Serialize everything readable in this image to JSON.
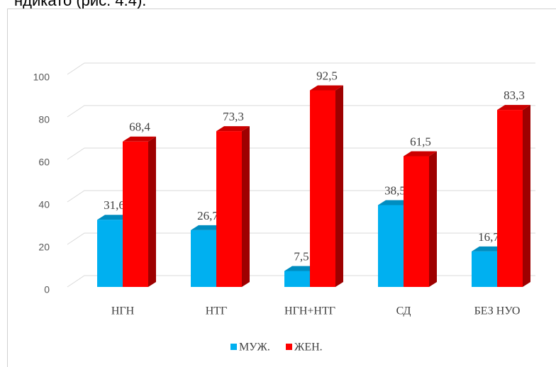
{
  "context_text": "ндикато (рис. 4.4).",
  "chart_data": {
    "type": "bar3d",
    "categories": [
      "НГН",
      "НТГ",
      "НГН+НТГ",
      "СД",
      "БЕЗ НУО"
    ],
    "series": [
      {
        "name": "МУЖ.",
        "color": "#00b0f0",
        "values": [
          31.6,
          26.7,
          7.5,
          38.5,
          16.7
        ],
        "value_labels": [
          "31,6",
          "26,7",
          "7,5",
          "38,5",
          "16,7"
        ]
      },
      {
        "name": "ЖЕН.",
        "color": "#ff0000",
        "values": [
          68.4,
          73.3,
          92.5,
          61.5,
          83.3
        ],
        "value_labels": [
          "68,4",
          "73,3",
          "92,5",
          "61,5",
          "83,3"
        ]
      }
    ],
    "ylim": [
      0,
      100
    ],
    "yticks": [
      0,
      20,
      40,
      60,
      80,
      100
    ],
    "grid": true,
    "legend": "bottom"
  }
}
